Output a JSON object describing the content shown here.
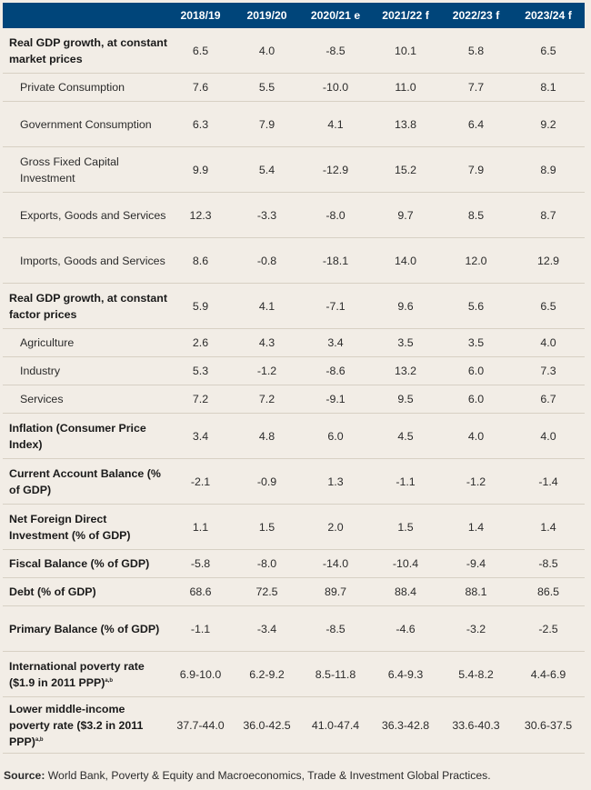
{
  "columns": [
    "2018/19",
    "2019/20",
    "2020/21 e",
    "2021/22 f",
    "2022/23 f",
    "2023/24 f"
  ],
  "rows": [
    {
      "label": "Real GDP growth, at constant market prices",
      "values": [
        "6.5",
        "4.0",
        "-8.5",
        "10.1",
        "5.8",
        "6.5"
      ]
    },
    {
      "label": "Private Consumption",
      "values": [
        "7.6",
        "5.5",
        "-10.0",
        "11.0",
        "7.7",
        "8.1"
      ]
    },
    {
      "label": "Government Consumption",
      "values": [
        "6.3",
        "7.9",
        "4.1",
        "13.8",
        "6.4",
        "9.2"
      ]
    },
    {
      "label": "Gross Fixed Capital Investment",
      "values": [
        "9.9",
        "5.4",
        "-12.9",
        "15.2",
        "7.9",
        "8.9"
      ]
    },
    {
      "label": "Exports, Goods and Services",
      "values": [
        "12.3",
        "-3.3",
        "-8.0",
        "9.7",
        "8.5",
        "8.7"
      ]
    },
    {
      "label": "Imports, Goods and Services",
      "values": [
        "8.6",
        "-0.8",
        "-18.1",
        "14.0",
        "12.0",
        "12.9"
      ]
    },
    {
      "label": "Real GDP growth, at constant factor prices",
      "values": [
        "5.9",
        "4.1",
        "-7.1",
        "9.6",
        "5.6",
        "6.5"
      ]
    },
    {
      "label": "Agriculture",
      "values": [
        "2.6",
        "4.3",
        "3.4",
        "3.5",
        "3.5",
        "4.0"
      ]
    },
    {
      "label": "Industry",
      "values": [
        "5.3",
        "-1.2",
        "-8.6",
        "13.2",
        "6.0",
        "7.3"
      ]
    },
    {
      "label": "Services",
      "values": [
        "7.2",
        "7.2",
        "-9.1",
        "9.5",
        "6.0",
        "6.7"
      ]
    },
    {
      "label": "Inflation (Consumer Price Index)",
      "values": [
        "3.4",
        "4.8",
        "6.0",
        "4.5",
        "4.0",
        "4.0"
      ]
    },
    {
      "label": "Current Account Balance (% of GDP)",
      "values": [
        "-2.1",
        "-0.9",
        "1.3",
        "-1.1",
        "-1.2",
        "-1.4"
      ]
    },
    {
      "label": "Net Foreign Direct Investment (% of GDP)",
      "values": [
        "1.1",
        "1.5",
        "2.0",
        "1.5",
        "1.4",
        "1.4"
      ]
    },
    {
      "label": "Fiscal Balance (% of GDP)",
      "values": [
        "-5.8",
        "-8.0",
        "-14.0",
        "-10.4",
        "-9.4",
        "-8.5"
      ]
    },
    {
      "label": "Debt (% of GDP)",
      "values": [
        "68.6",
        "72.5",
        "89.7",
        "88.4",
        "88.1",
        "86.5"
      ]
    },
    {
      "label": "Primary Balance (% of GDP)",
      "values": [
        "-1.1",
        "-3.4",
        "-8.5",
        "-4.6",
        "-3.2",
        "-2.5"
      ]
    },
    {
      "label": "International poverty rate ($1.9 in 2011 PPP)",
      "sup": "a,b",
      "values": [
        "6.9-10.0",
        "6.2-9.2",
        "8.5-11.8",
        "6.4-9.3",
        "5.4-8.2",
        "4.4-6.9"
      ]
    },
    {
      "label": "Lower middle-income poverty rate ($3.2 in 2011 PPP)",
      "sup": "a,b",
      "values": [
        "37.7-44.0",
        "36.0-42.5",
        "41.0-47.4",
        "36.3-42.8",
        "33.6-40.3",
        "30.6-37.5"
      ]
    }
  ],
  "source": {
    "prefix": "Source:",
    "text": " World Bank, Poverty & Equity and Macroeconomics, Trade & Investment Global Practices."
  }
}
